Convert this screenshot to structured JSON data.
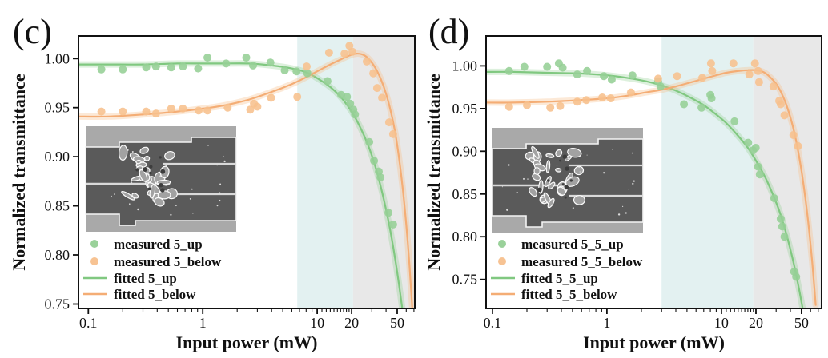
{
  "chart_data": [
    {
      "type": "scatter",
      "panel_label": "(c)",
      "xlabel": "Input power (mW)",
      "ylabel": "Normalized transmittance",
      "xscale": "log",
      "xlim": [
        0.082,
        71.3
      ],
      "ylim": [
        0.7455,
        1.023
      ],
      "grid": false,
      "legend_position": "lower-left",
      "xticks": [
        {
          "v": 0.1,
          "label": "0.1"
        },
        {
          "v": 1,
          "label": "1"
        },
        {
          "v": 10,
          "label": "10"
        },
        {
          "v": 20,
          "label": "20"
        },
        {
          "v": 50,
          "label": "50"
        }
      ],
      "xminor": [
        0.2,
        0.3,
        0.4,
        0.5,
        0.6,
        0.7,
        0.8,
        0.9,
        2,
        3,
        4,
        5,
        6,
        7,
        8,
        9,
        11,
        12,
        13,
        14,
        15,
        16,
        17,
        18,
        19,
        30,
        40,
        60,
        70
      ],
      "yticks": [
        {
          "v": 0.75,
          "label": "0.75"
        },
        {
          "v": 0.8,
          "label": "0.80"
        },
        {
          "v": 0.85,
          "label": "0.85"
        },
        {
          "v": 0.9,
          "label": "0.90"
        },
        {
          "v": 0.95,
          "label": "0.95"
        },
        {
          "v": 1.0,
          "label": "1.00"
        }
      ],
      "bands": [
        {
          "x0": 6.7,
          "x1": 20.6,
          "color": "#e3f1f1"
        },
        {
          "x0": 20.6,
          "x1": 71.3,
          "color": "#e8e8e8"
        }
      ],
      "series": [
        {
          "name": "measured 5_up",
          "kind": "scatter",
          "color": "#95cf95",
          "points": [
            [
              0.13,
              0.989
            ],
            [
              0.2,
              0.989
            ],
            [
              0.32,
              0.991
            ],
            [
              0.39,
              0.992
            ],
            [
              0.53,
              0.991
            ],
            [
              0.67,
              0.992
            ],
            [
              0.91,
              0.99
            ],
            [
              1.1,
              1.001
            ],
            [
              1.6,
              0.995
            ],
            [
              2.4,
              1.001
            ],
            [
              2.75,
              0.993
            ],
            [
              3.9,
              0.996
            ],
            [
              5.2,
              0.988
            ],
            [
              6.6,
              0.987
            ],
            [
              8.2,
              0.985
            ],
            [
              12.3,
              0.977
            ],
            [
              16.2,
              0.963
            ],
            [
              18.2,
              0.961
            ],
            [
              19.4,
              0.954
            ],
            [
              20.7,
              0.948
            ],
            [
              21.4,
              0.943
            ],
            [
              28.5,
              0.915
            ],
            [
              31.4,
              0.896
            ],
            [
              34.5,
              0.885
            ],
            [
              35.7,
              0.879
            ],
            [
              41.9,
              0.843
            ],
            [
              46.1,
              0.831
            ]
          ]
        },
        {
          "name": "measured 5_below",
          "kind": "scatter",
          "color": "#f7c08d",
          "points": [
            [
              0.13,
              0.946
            ],
            [
              0.2,
              0.946
            ],
            [
              0.32,
              0.946
            ],
            [
              0.39,
              0.944
            ],
            [
              0.53,
              0.949
            ],
            [
              0.67,
              0.949
            ],
            [
              0.92,
              0.947
            ],
            [
              1.1,
              0.947
            ],
            [
              1.65,
              0.95
            ],
            [
              2.6,
              0.948
            ],
            [
              2.8,
              0.954
            ],
            [
              3.0,
              0.951
            ],
            [
              3.95,
              0.96
            ],
            [
              6.7,
              0.961
            ],
            [
              8.1,
              0.992
            ],
            [
              12.7,
              1.006
            ],
            [
              17.3,
              1.005
            ],
            [
              19.1,
              1.013
            ],
            [
              20.3,
              1.007
            ],
            [
              27.1,
              0.997
            ],
            [
              30.9,
              0.985
            ],
            [
              33.4,
              0.97
            ],
            [
              36.9,
              0.96
            ],
            [
              42.5,
              0.935
            ],
            [
              46.1,
              0.923
            ]
          ]
        },
        {
          "name": "fitted 5_up",
          "kind": "line",
          "color": "#80c880",
          "band_color": "rgba(149,207,149,0.32)",
          "points": [
            [
              0.082,
              0.994
            ],
            [
              0.15,
              0.994
            ],
            [
              0.3,
              0.994
            ],
            [
              0.6,
              0.995
            ],
            [
              1.0,
              0.995
            ],
            [
              1.5,
              0.995
            ],
            [
              2.5,
              0.995
            ],
            [
              4.0,
              0.993
            ],
            [
              6.0,
              0.99
            ],
            [
              8.0,
              0.986
            ],
            [
              10,
              0.98
            ],
            [
              13,
              0.971
            ],
            [
              16,
              0.961
            ],
            [
              20,
              0.946
            ],
            [
              24,
              0.929
            ],
            [
              28,
              0.911
            ],
            [
              32,
              0.891
            ],
            [
              36,
              0.869
            ],
            [
              40,
              0.846
            ],
            [
              44,
              0.822
            ],
            [
              48,
              0.796
            ],
            [
              52,
              0.769
            ],
            [
              55,
              0.748
            ],
            [
              57,
              0.733
            ]
          ]
        },
        {
          "name": "fitted 5_below",
          "kind": "line",
          "color": "#f4ad75",
          "band_color": "rgba(247,192,141,0.35)",
          "points": [
            [
              0.082,
              0.941
            ],
            [
              0.15,
              0.941
            ],
            [
              0.3,
              0.943
            ],
            [
              0.6,
              0.946
            ],
            [
              1.0,
              0.949
            ],
            [
              1.5,
              0.952
            ],
            [
              2.5,
              0.958
            ],
            [
              4.0,
              0.966
            ],
            [
              6.0,
              0.974
            ],
            [
              8.0,
              0.981
            ],
            [
              10,
              0.987
            ],
            [
              13,
              0.994
            ],
            [
              16,
              0.999
            ],
            [
              19,
              1.003
            ],
            [
              22,
              1.005
            ],
            [
              25,
              1.004
            ],
            [
              28,
              1.0
            ],
            [
              32,
              0.991
            ],
            [
              36,
              0.979
            ],
            [
              40,
              0.964
            ],
            [
              44,
              0.946
            ],
            [
              48,
              0.925
            ],
            [
              52,
              0.898
            ],
            [
              56,
              0.867
            ],
            [
              60,
              0.831
            ],
            [
              64,
              0.79
            ],
            [
              67,
              0.755
            ],
            [
              69,
              0.73
            ]
          ]
        }
      ]
    },
    {
      "type": "scatter",
      "panel_label": "(d)",
      "xlabel": "Input power (mW)",
      "ylabel": "Normalized transmittance",
      "xscale": "log",
      "xlim": [
        0.088,
        74.9
      ],
      "ylim": [
        0.716,
        1.035
      ],
      "grid": false,
      "legend_position": "lower-left",
      "xticks": [
        {
          "v": 0.1,
          "label": "0.1"
        },
        {
          "v": 1,
          "label": "1"
        },
        {
          "v": 10,
          "label": "10"
        },
        {
          "v": 20,
          "label": "20"
        },
        {
          "v": 50,
          "label": "50"
        }
      ],
      "xminor": [
        0.2,
        0.3,
        0.4,
        0.5,
        0.6,
        0.7,
        0.8,
        0.9,
        2,
        3,
        4,
        5,
        6,
        7,
        8,
        9,
        11,
        12,
        13,
        14,
        15,
        16,
        17,
        18,
        19,
        30,
        40,
        60,
        70
      ],
      "yticks": [
        {
          "v": 0.75,
          "label": "0.75"
        },
        {
          "v": 0.8,
          "label": "0.80"
        },
        {
          "v": 0.85,
          "label": "0.85"
        },
        {
          "v": 0.9,
          "label": "0.90"
        },
        {
          "v": 0.95,
          "label": "0.95"
        },
        {
          "v": 1.0,
          "label": "1.00"
        }
      ],
      "bands": [
        {
          "x0": 3.0,
          "x1": 19.0,
          "color": "#e3f1f1"
        },
        {
          "x0": 19.0,
          "x1": 74.9,
          "color": "#e8e8e8"
        }
      ],
      "series": [
        {
          "name": "measured 5_5_up",
          "kind": "scatter",
          "color": "#95cf95",
          "points": [
            [
              0.14,
              0.994
            ],
            [
              0.19,
              0.999
            ],
            [
              0.3,
              0.999
            ],
            [
              0.38,
              1.003
            ],
            [
              0.41,
              0.998
            ],
            [
              0.55,
              0.99
            ],
            [
              0.67,
              0.994
            ],
            [
              0.94,
              0.988
            ],
            [
              1.1,
              0.984
            ],
            [
              1.67,
              0.989
            ],
            [
              2.8,
              0.982
            ],
            [
              2.94,
              0.976
            ],
            [
              4.7,
              0.955
            ],
            [
              6.7,
              0.951
            ],
            [
              8.0,
              0.966
            ],
            [
              8.2,
              0.962
            ],
            [
              13.0,
              0.935
            ],
            [
              17.1,
              0.91
            ],
            [
              18.8,
              0.901
            ],
            [
              19.9,
              0.904
            ],
            [
              20.9,
              0.882
            ],
            [
              21.6,
              0.873
            ],
            [
              28.9,
              0.845
            ],
            [
              32.9,
              0.821
            ],
            [
              33.9,
              0.812
            ],
            [
              35.5,
              0.8
            ],
            [
              43.1,
              0.759
            ],
            [
              44.9,
              0.753
            ]
          ]
        },
        {
          "name": "measured 5_5_below",
          "kind": "scatter",
          "color": "#f7c08d",
          "points": [
            [
              0.14,
              0.952
            ],
            [
              0.2,
              0.954
            ],
            [
              0.32,
              0.951
            ],
            [
              0.39,
              0.953
            ],
            [
              0.55,
              0.958
            ],
            [
              0.66,
              0.96
            ],
            [
              0.91,
              0.963
            ],
            [
              1.08,
              0.962
            ],
            [
              1.62,
              0.969
            ],
            [
              2.8,
              0.985
            ],
            [
              4.1,
              0.988
            ],
            [
              6.8,
              0.986
            ],
            [
              8.1,
              1.003
            ],
            [
              8.3,
              0.994
            ],
            [
              12.7,
              1.003
            ],
            [
              17.5,
              0.99
            ],
            [
              19.6,
              1.003
            ],
            [
              20.9,
              0.994
            ],
            [
              21.3,
              0.981
            ],
            [
              28.4,
              0.976
            ],
            [
              31.9,
              0.959
            ],
            [
              32.9,
              0.955
            ],
            [
              35.5,
              0.942
            ],
            [
              42.4,
              0.919
            ],
            [
              46.6,
              0.906
            ]
          ]
        },
        {
          "name": "fitted 5_5_up",
          "kind": "line",
          "color": "#80c880",
          "band_color": "rgba(149,207,149,0.32)",
          "points": [
            [
              0.088,
              0.993
            ],
            [
              0.15,
              0.993
            ],
            [
              0.3,
              0.992
            ],
            [
              0.6,
              0.991
            ],
            [
              1.0,
              0.989
            ],
            [
              1.5,
              0.986
            ],
            [
              2.2,
              0.982
            ],
            [
              3.0,
              0.977
            ],
            [
              4.0,
              0.971
            ],
            [
              5.5,
              0.962
            ],
            [
              7.0,
              0.954
            ],
            [
              9.0,
              0.943
            ],
            [
              11,
              0.933
            ],
            [
              14,
              0.918
            ],
            [
              17,
              0.904
            ],
            [
              20,
              0.889
            ],
            [
              24,
              0.87
            ],
            [
              28,
              0.85
            ],
            [
              32,
              0.83
            ],
            [
              36,
              0.808
            ],
            [
              40,
              0.785
            ],
            [
              44,
              0.761
            ],
            [
              48,
              0.736
            ],
            [
              51,
              0.717
            ]
          ]
        },
        {
          "name": "fitted 5_5_below",
          "kind": "line",
          "color": "#f4ad75",
          "band_color": "rgba(247,192,141,0.35)",
          "points": [
            [
              0.088,
              0.957
            ],
            [
              0.15,
              0.957
            ],
            [
              0.3,
              0.958
            ],
            [
              0.6,
              0.96
            ],
            [
              1.0,
              0.962
            ],
            [
              1.5,
              0.965
            ],
            [
              2.2,
              0.969
            ],
            [
              3.0,
              0.972
            ],
            [
              4.0,
              0.976
            ],
            [
              5.5,
              0.981
            ],
            [
              7.0,
              0.985
            ],
            [
              9.0,
              0.989
            ],
            [
              11,
              0.992
            ],
            [
              14,
              0.994
            ],
            [
              17,
              0.995
            ],
            [
              20,
              0.995
            ],
            [
              23,
              0.993
            ],
            [
              26,
              0.988
            ],
            [
              30,
              0.979
            ],
            [
              34,
              0.966
            ],
            [
              38,
              0.949
            ],
            [
              42,
              0.929
            ],
            [
              46,
              0.905
            ],
            [
              50,
              0.877
            ],
            [
              54,
              0.845
            ],
            [
              58,
              0.81
            ],
            [
              62,
              0.77
            ],
            [
              65,
              0.737
            ],
            [
              66.5,
              0.72
            ]
          ]
        }
      ]
    }
  ]
}
